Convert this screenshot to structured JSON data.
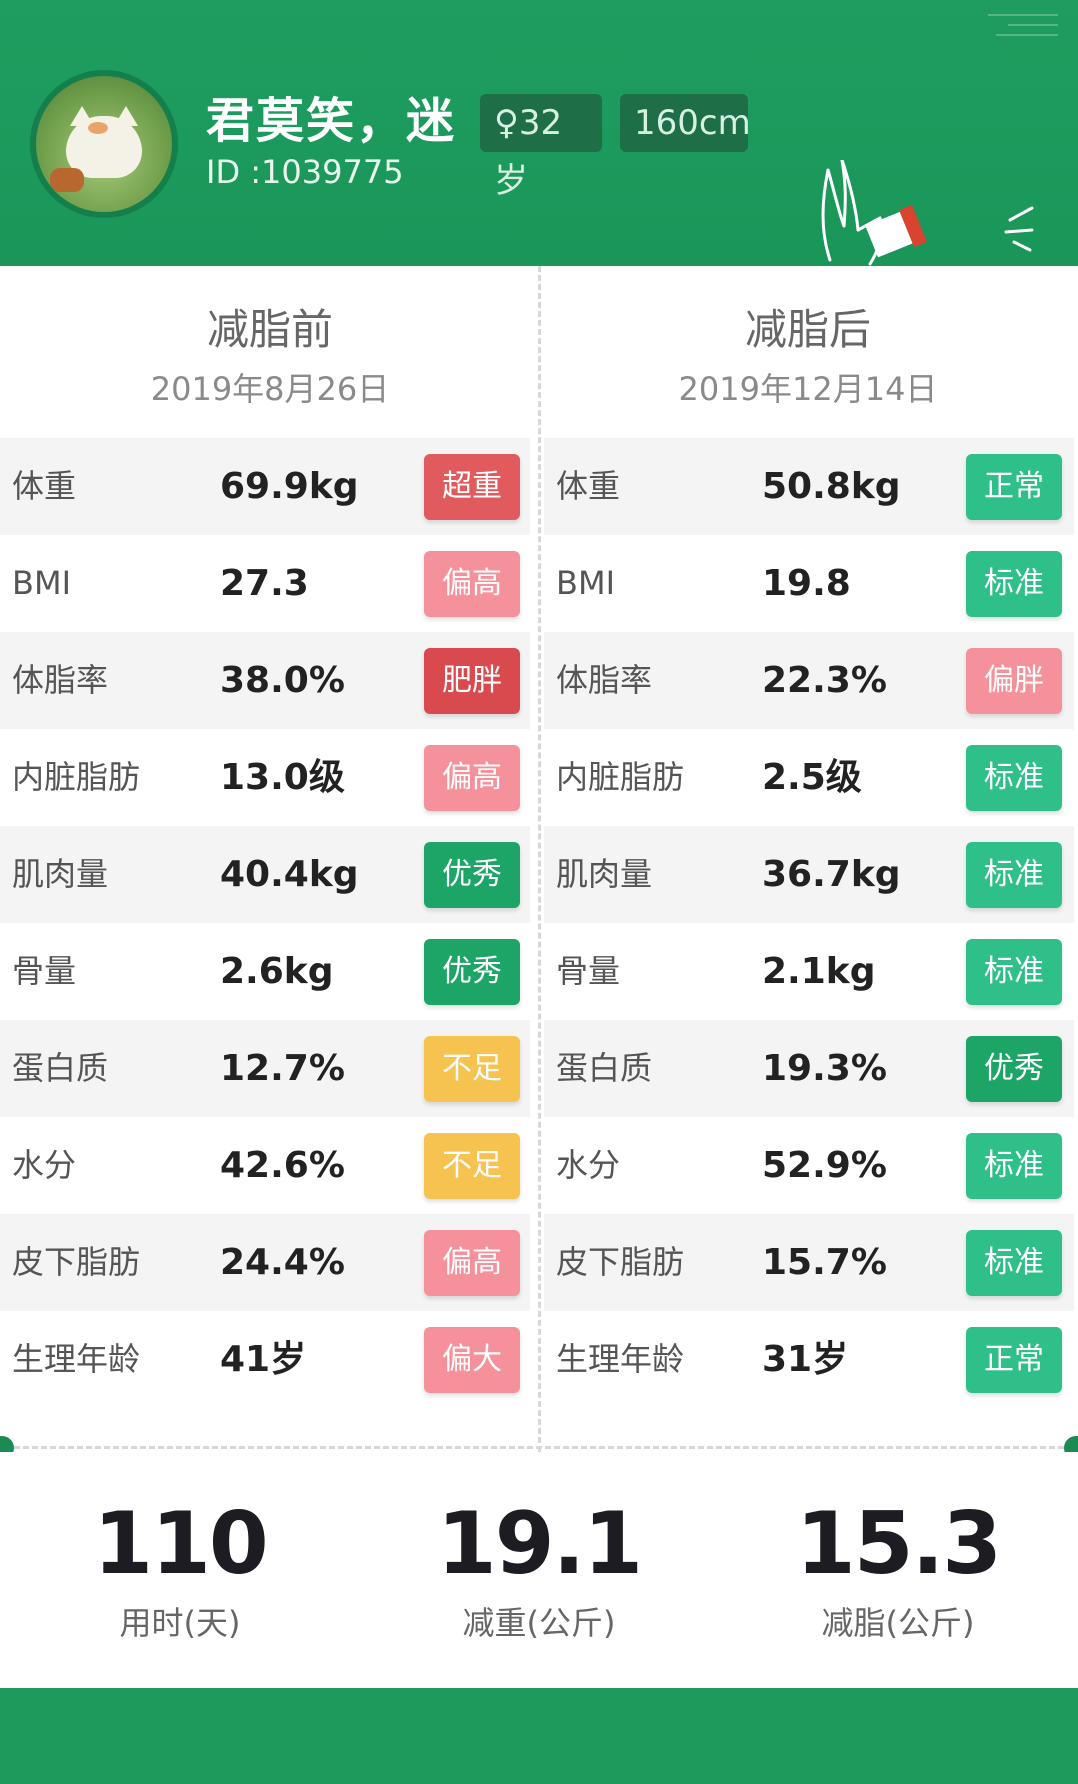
{
  "header": {
    "name": "君莫笑，迷",
    "id_text": "ID :1039775",
    "age_tag": "♀32岁",
    "height_tag": "160cm"
  },
  "before": {
    "title": "减脂前",
    "date": "2019年8月26日",
    "rows": [
      {
        "label": "体重",
        "value": "69.9kg",
        "badge": "超重",
        "badge_color": "#e05a5e"
      },
      {
        "label": "BMI",
        "value": "27.3",
        "badge": "偏高",
        "badge_color": "#f4919a"
      },
      {
        "label": "体脂率",
        "value": "38.0%",
        "badge": "肥胖",
        "badge_color": "#d94a4e"
      },
      {
        "label": "内脏脂肪",
        "value": "13.0级",
        "badge": "偏高",
        "badge_color": "#f4919a"
      },
      {
        "label": "肌肉量",
        "value": "40.4kg",
        "badge": "优秀",
        "badge_color": "#1da567"
      },
      {
        "label": "骨量",
        "value": "2.6kg",
        "badge": "优秀",
        "badge_color": "#1da567"
      },
      {
        "label": "蛋白质",
        "value": "12.7%",
        "badge": "不足",
        "badge_color": "#f7c350"
      },
      {
        "label": "水分",
        "value": "42.6%",
        "badge": "不足",
        "badge_color": "#f7c350"
      },
      {
        "label": "皮下脂肪",
        "value": "24.4%",
        "badge": "偏高",
        "badge_color": "#f4919a"
      },
      {
        "label": "生理年龄",
        "value": "41岁",
        "badge": "偏大",
        "badge_color": "#f4919a"
      }
    ]
  },
  "after": {
    "title": "减脂后",
    "date": "2019年12月14日",
    "rows": [
      {
        "label": "体重",
        "value": "50.8kg",
        "badge": "正常",
        "badge_color": "#2fc08a"
      },
      {
        "label": "BMI",
        "value": "19.8",
        "badge": "标准",
        "badge_color": "#2fc08a"
      },
      {
        "label": "体脂率",
        "value": "22.3%",
        "badge": "偏胖",
        "badge_color": "#f4919a"
      },
      {
        "label": "内脏脂肪",
        "value": "2.5级",
        "badge": "标准",
        "badge_color": "#2fc08a"
      },
      {
        "label": "肌肉量",
        "value": "36.7kg",
        "badge": "标准",
        "badge_color": "#2fc08a"
      },
      {
        "label": "骨量",
        "value": "2.1kg",
        "badge": "标准",
        "badge_color": "#2fc08a"
      },
      {
        "label": "蛋白质",
        "value": "19.3%",
        "badge": "优秀",
        "badge_color": "#1da567"
      },
      {
        "label": "水分",
        "value": "52.9%",
        "badge": "标准",
        "badge_color": "#2fc08a"
      },
      {
        "label": "皮下脂肪",
        "value": "15.7%",
        "badge": "标准",
        "badge_color": "#2fc08a"
      },
      {
        "label": "生理年龄",
        "value": "31岁",
        "badge": "正常",
        "badge_color": "#2fc08a"
      }
    ]
  },
  "summary": [
    {
      "value": "110",
      "caption": "用时(天)"
    },
    {
      "value": "19.1",
      "caption": "减重(公斤)"
    },
    {
      "value": "15.3",
      "caption": "减脂(公斤)"
    }
  ],
  "icons": {
    "avatar": "cat-avatar-icon",
    "decoration": "hand-book-icon"
  }
}
